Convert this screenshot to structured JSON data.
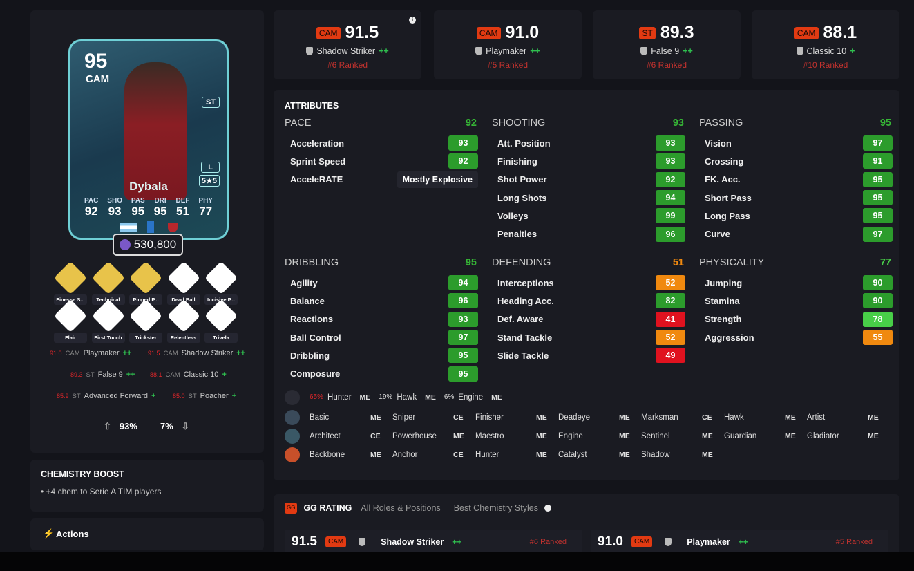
{
  "top_roles": [
    {
      "pos": "CAM",
      "rating": "91.5",
      "role": "Shadow Striker",
      "plus": "++",
      "rank": "#6 Ranked",
      "icon": "shield-icon"
    },
    {
      "pos": "CAM",
      "rating": "91.0",
      "role": "Playmaker",
      "plus": "++",
      "rank": "#5 Ranked",
      "icon": "shield-icon"
    },
    {
      "pos": "ST",
      "rating": "89.3",
      "role": "False 9",
      "plus": "++",
      "rank": "#6 Ranked",
      "icon": "shield-icon"
    },
    {
      "pos": "CAM",
      "rating": "88.1",
      "role": "Classic 10",
      "plus": "+",
      "rank": "#10 Ranked",
      "icon": "boot-icon"
    }
  ],
  "card": {
    "rating": "95",
    "position": "CAM",
    "alt_position": "ST",
    "name": "Dybala",
    "foot": "L",
    "skills_weak": "5★5",
    "stats": [
      {
        "k": "PAC",
        "v": "92"
      },
      {
        "k": "SHO",
        "v": "93"
      },
      {
        "k": "PAS",
        "v": "95"
      },
      {
        "k": "DRI",
        "v": "95"
      },
      {
        "k": "DEF",
        "v": "51"
      },
      {
        "k": "PHY",
        "v": "77"
      }
    ],
    "price": "530,800"
  },
  "playstyles": [
    {
      "label": "Finesse S...",
      "plus": true
    },
    {
      "label": "Technical",
      "plus": true
    },
    {
      "label": "Pinged P...",
      "plus": true
    },
    {
      "label": "Dead Ball",
      "plus": false
    },
    {
      "label": "Incisive P...",
      "plus": false
    },
    {
      "label": "Flair",
      "plus": false
    },
    {
      "label": "First Touch",
      "plus": false
    },
    {
      "label": "Trickster",
      "plus": false
    },
    {
      "label": "Relentless",
      "plus": false
    },
    {
      "label": "Trivela",
      "plus": false
    }
  ],
  "role_list": [
    {
      "r": "91.0",
      "p": "CAM",
      "n": "Playmaker",
      "s": "++"
    },
    {
      "r": "91.5",
      "p": "CAM",
      "n": "Shadow Striker",
      "s": "++"
    },
    {
      "r": "89.3",
      "p": "ST",
      "n": "False 9",
      "s": "++"
    },
    {
      "r": "88.1",
      "p": "CAM",
      "n": "Classic 10",
      "s": "+"
    },
    {
      "r": "85.9",
      "p": "ST",
      "n": "Advanced Forward",
      "s": "+"
    },
    {
      "r": "85.0",
      "p": "ST",
      "n": "Poacher",
      "s": "+"
    }
  ],
  "work_rates": {
    "attack": "93%",
    "defense": "7%"
  },
  "chemistry_boost": {
    "title": "CHEMISTRY BOOST",
    "item": "+4 chem to Serie A TIM players"
  },
  "actions": {
    "label": "Actions"
  },
  "attributes": {
    "title": "ATTRIBUTES",
    "accel_type_label": "AcceleRATE",
    "accel_type": "Mostly Explosive",
    "groups": [
      {
        "name": "PACE",
        "value": 92,
        "items": [
          [
            "Acceleration",
            93
          ],
          [
            "Sprint Speed",
            92
          ]
        ]
      },
      {
        "name": "SHOOTING",
        "value": 93,
        "items": [
          [
            "Att. Position",
            93
          ],
          [
            "Finishing",
            93
          ],
          [
            "Shot Power",
            92
          ],
          [
            "Long Shots",
            94
          ],
          [
            "Volleys",
            99
          ],
          [
            "Penalties",
            96
          ]
        ]
      },
      {
        "name": "PASSING",
        "value": 95,
        "items": [
          [
            "Vision",
            97
          ],
          [
            "Crossing",
            91
          ],
          [
            "FK. Acc.",
            95
          ],
          [
            "Short Pass",
            95
          ],
          [
            "Long Pass",
            95
          ],
          [
            "Curve",
            97
          ]
        ]
      },
      {
        "name": "DRIBBLING",
        "value": 95,
        "items": [
          [
            "Agility",
            94
          ],
          [
            "Balance",
            96
          ],
          [
            "Reactions",
            93
          ],
          [
            "Ball Control",
            97
          ],
          [
            "Dribbling",
            95
          ],
          [
            "Composure",
            95
          ]
        ]
      },
      {
        "name": "DEFENDING",
        "value": 51,
        "items": [
          [
            "Interceptions",
            52
          ],
          [
            "Heading Acc.",
            82
          ],
          [
            "Def. Aware",
            41
          ],
          [
            "Stand Tackle",
            52
          ],
          [
            "Slide Tackle",
            49
          ]
        ]
      },
      {
        "name": "PHYSICALITY",
        "value": 77,
        "items": [
          [
            "Jumping",
            90
          ],
          [
            "Stamina",
            90
          ],
          [
            "Strength",
            78
          ],
          [
            "Aggression",
            55
          ]
        ]
      }
    ]
  },
  "popular_chem": [
    {
      "pct": "65%",
      "n": "Hunter",
      "t": "ME"
    },
    {
      "pct": "19%",
      "n": "Hawk",
      "t": "ME"
    },
    {
      "pct": "6%",
      "n": "Engine",
      "t": "ME"
    }
  ],
  "chem_styles": [
    [
      [
        "Basic",
        "ME"
      ],
      [
        "Sniper",
        "CE"
      ],
      [
        "Finisher",
        "ME"
      ],
      [
        "Deadeye",
        "ME"
      ],
      [
        "Marksman",
        "CE"
      ],
      [
        "Hawk",
        "ME"
      ],
      [
        "Artist",
        "ME"
      ]
    ],
    [
      [
        "Architect",
        "CE"
      ],
      [
        "Powerhouse",
        "ME"
      ],
      [
        "Maestro",
        "ME"
      ],
      [
        "Engine",
        "ME"
      ],
      [
        "Sentinel",
        "ME"
      ],
      [
        "Guardian",
        "ME"
      ],
      [
        "Gladiator",
        "ME"
      ]
    ],
    [
      [
        "Backbone",
        "ME"
      ],
      [
        "Anchor",
        "CE"
      ],
      [
        "Hunter",
        "ME"
      ],
      [
        "Catalyst",
        "ME"
      ],
      [
        "Shadow",
        "ME"
      ]
    ]
  ],
  "gg": {
    "badge": "GG",
    "title": "GG RATING",
    "tab1": "All Roles & Positions",
    "tab2": "Best Chemistry Styles",
    "rows": [
      {
        "rating": "91.5",
        "pos": "CAM",
        "role": "Shadow Striker",
        "plus": "++",
        "rank": "#6 Ranked"
      },
      {
        "rating": "91.0",
        "pos": "CAM",
        "role": "Playmaker",
        "plus": "++",
        "rank": "#5 Ranked"
      }
    ]
  },
  "colors": {
    "elite": "#2c9c2c",
    "good": "#48cf48",
    "mid": "#f0890f",
    "low": "#e0121f",
    "accent": "#e23a12"
  }
}
